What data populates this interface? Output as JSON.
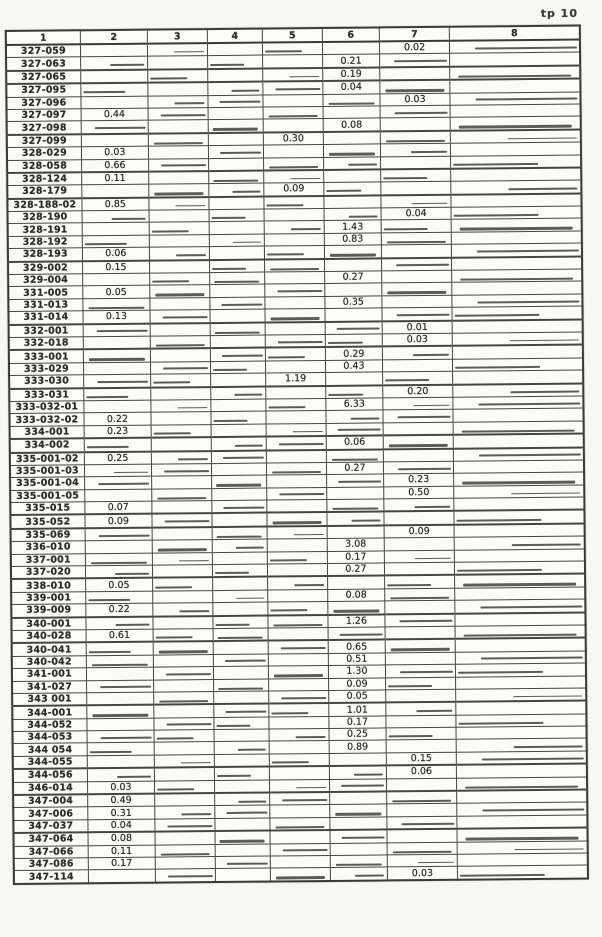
{
  "page": {
    "label": "tp 10"
  },
  "colors": {
    "paper": "#f7f7f4",
    "ink": "#2b2b2b",
    "rule": "#454545"
  },
  "table": {
    "columns": [
      "1",
      "2",
      "3",
      "4",
      "5",
      "6",
      "7",
      "8"
    ],
    "rows": [
      {
        "id": "327-059",
        "cells": {
          "7": "0.02"
        }
      },
      {
        "id": "327-063",
        "cells": {
          "6": "0.21"
        }
      },
      {
        "id": "327-065",
        "cells": {
          "6": "0.19"
        }
      },
      {
        "id": "327-095",
        "cells": {
          "6": "0.04"
        }
      },
      {
        "id": "327-096",
        "cells": {
          "7": "0.03"
        }
      },
      {
        "id": "327-097",
        "cells": {
          "2": "0.44"
        }
      },
      {
        "id": "327-098",
        "cells": {
          "6": "0.08"
        }
      },
      {
        "id": "327-099",
        "cells": {
          "5": "0.30"
        }
      },
      {
        "id": "328-029",
        "cells": {
          "2": "0.03"
        }
      },
      {
        "id": "328-058",
        "cells": {
          "2": "0.66"
        }
      },
      {
        "id": "328-124",
        "cells": {
          "2": "0.11"
        }
      },
      {
        "id": "328-179",
        "cells": {
          "5": "0.09"
        }
      },
      {
        "id": "328-188-02",
        "cells": {
          "2": "0.85"
        }
      },
      {
        "id": "328-190",
        "cells": {
          "7": "0.04"
        }
      },
      {
        "id": "328-191",
        "cells": {
          "6": "1.43"
        }
      },
      {
        "id": "328-192",
        "cells": {
          "6": "0.83"
        }
      },
      {
        "id": "328-193",
        "cells": {
          "2": "0.06"
        }
      },
      {
        "id": "329-002",
        "cells": {
          "2": "0.15"
        }
      },
      {
        "id": "329-004",
        "cells": {
          "6": "0.27"
        }
      },
      {
        "id": "331-005",
        "cells": {
          "2": "0.05"
        }
      },
      {
        "id": "331-013",
        "cells": {
          "6": "0.35"
        }
      },
      {
        "id": "331-014",
        "cells": {
          "2": "0.13"
        }
      },
      {
        "id": "332-001",
        "cells": {
          "7": "0.01"
        }
      },
      {
        "id": "332-018",
        "cells": {
          "7": "0.03"
        }
      },
      {
        "id": "333-001",
        "cells": {
          "6": "0.29"
        }
      },
      {
        "id": "333-029",
        "cells": {
          "6": "0.43"
        }
      },
      {
        "id": "333-030",
        "cells": {
          "5": "1.19"
        }
      },
      {
        "id": "333-031",
        "cells": {
          "7": "0.20"
        }
      },
      {
        "id": "333-032-01",
        "cells": {
          "6": "6.33"
        }
      },
      {
        "id": "333-032-02",
        "cells": {
          "2": "0.22"
        }
      },
      {
        "id": "334-001",
        "cells": {
          "2": "0.23"
        }
      },
      {
        "id": "334-002",
        "cells": {
          "6": "0.06"
        }
      },
      {
        "id": "335-001-02",
        "cells": {
          "2": "0.25"
        }
      },
      {
        "id": "335-001-03",
        "cells": {
          "6": "0.27"
        }
      },
      {
        "id": "335-001-04",
        "cells": {
          "7": "0.23"
        }
      },
      {
        "id": "335-001-05",
        "cells": {
          "7": "0.50"
        }
      },
      {
        "id": "335-015",
        "cells": {
          "2": "0.07"
        }
      },
      {
        "id": "335-052",
        "cells": {
          "2": "0.09"
        }
      },
      {
        "id": "335-069",
        "cells": {
          "7": "0.09"
        }
      },
      {
        "id": "336-010",
        "cells": {
          "6": "3.08"
        }
      },
      {
        "id": "337-001",
        "cells": {
          "6": "0.17"
        }
      },
      {
        "id": "337-020",
        "cells": {
          "6": "0.27"
        }
      },
      {
        "id": "338-010",
        "cells": {
          "2": "0.05"
        }
      },
      {
        "id": "339-001",
        "cells": {
          "6": "0.08"
        }
      },
      {
        "id": "339-009",
        "cells": {
          "2": "0.22"
        }
      },
      {
        "id": "340-001",
        "cells": {
          "6": "1.26"
        }
      },
      {
        "id": "340-028",
        "cells": {
          "2": "0.61"
        }
      },
      {
        "id": "340-041",
        "cells": {
          "6": "0.65"
        }
      },
      {
        "id": "340-042",
        "cells": {
          "6": "0.51"
        }
      },
      {
        "id": "341-001",
        "cells": {
          "6": "1.30"
        }
      },
      {
        "id": "341-027",
        "cells": {
          "6": "0.09"
        }
      },
      {
        "id": "343 001",
        "cells": {
          "6": "0.05"
        }
      },
      {
        "id": "344-001",
        "cells": {
          "6": "1.01"
        }
      },
      {
        "id": "344-052",
        "cells": {
          "6": "0.17"
        }
      },
      {
        "id": "344-053",
        "cells": {
          "6": "0.25"
        }
      },
      {
        "id": "344 054",
        "cells": {
          "6": "0.89"
        }
      },
      {
        "id": "344-055",
        "cells": {
          "7": "0.15"
        }
      },
      {
        "id": "344-056",
        "cells": {
          "7": "0.06"
        }
      },
      {
        "id": "346-014",
        "cells": {
          "2": "0.03"
        }
      },
      {
        "id": "347-004",
        "cells": {
          "2": "0.49"
        }
      },
      {
        "id": "347-006",
        "cells": {
          "2": "0.31"
        }
      },
      {
        "id": "347-037",
        "cells": {
          "2": "0.04"
        }
      },
      {
        "id": "347-064",
        "cells": {
          "2": "0.08"
        }
      },
      {
        "id": "347-066",
        "cells": {
          "2": "0.11"
        }
      },
      {
        "id": "347-086",
        "cells": {
          "2": "0.17"
        }
      },
      {
        "id": "347-114",
        "cells": {
          "7": "0.03"
        }
      }
    ]
  }
}
